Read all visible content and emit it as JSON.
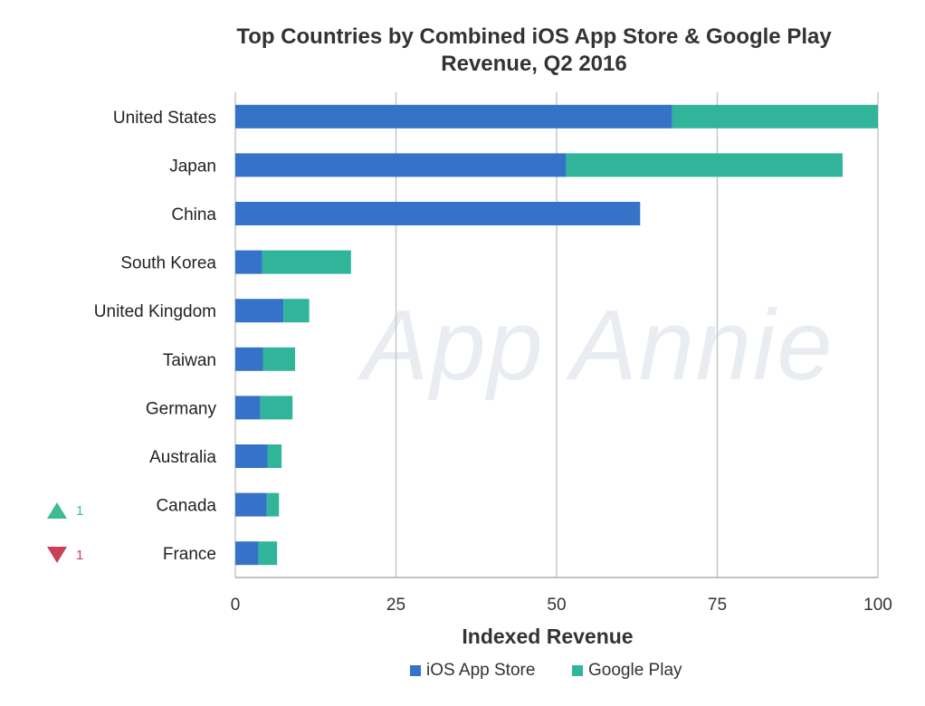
{
  "chart_data": {
    "type": "bar",
    "orientation": "horizontal",
    "stacked": true,
    "title": "Top Countries by Combined iOS App Store & Google Play Revenue, Q2 2016",
    "title_line1": "Top Countries by Combined iOS App Store & Google Play",
    "title_line2": "Revenue, Q2 2016",
    "xlabel": "Indexed Revenue",
    "ylabel": "",
    "xlim": [
      0,
      100
    ],
    "xticks": [
      "0",
      "25",
      "50",
      "75",
      "100"
    ],
    "grid": true,
    "legend_position": "bottom",
    "categories": [
      "United States",
      "Japan",
      "China",
      "South Korea",
      "United Kingdom",
      "Taiwan",
      "Germany",
      "Australia",
      "Canada",
      "France"
    ],
    "series": [
      {
        "name": "iOS App Store",
        "color": "#3573c9",
        "values": [
          68,
          51.5,
          63,
          4.2,
          7.5,
          4.3,
          3.9,
          5.0,
          4.9,
          3.6
        ]
      },
      {
        "name": "Google Play",
        "color": "#31b59a",
        "values": [
          32,
          43,
          0,
          13.8,
          4,
          5,
          5,
          2.2,
          1.9,
          2.9
        ]
      }
    ]
  },
  "watermark": "App Annie",
  "rank_changes": [
    {
      "country": "Canada",
      "direction": "up",
      "value": "1",
      "color": "#3dbb94"
    },
    {
      "country": "France",
      "direction": "down",
      "value": "1",
      "color": "#c8405a"
    }
  ]
}
